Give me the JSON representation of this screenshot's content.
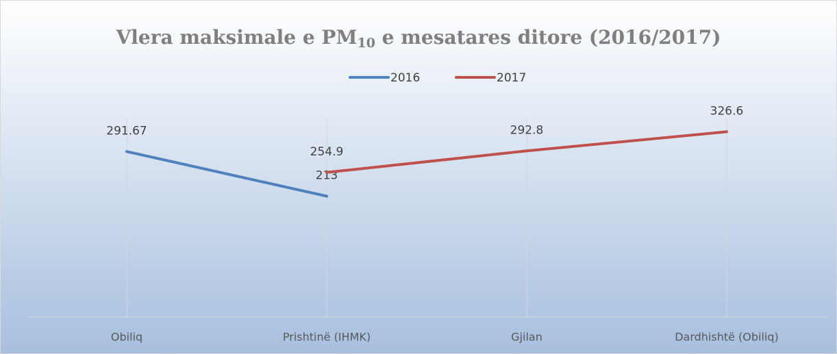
{
  "chart_data": {
    "type": "line",
    "title": [
      "Vlera maksimale e PM",
      "10",
      " e mesatares ditore (2016/2017)"
    ],
    "categories": [
      "Obiliq",
      "Prishtinë (IHMK)",
      "Gjilan",
      "Dardhishtë (Obiliq)"
    ],
    "series": [
      {
        "name": "2016",
        "color": "#4f81bd",
        "values": [
          291.67,
          213,
          null,
          null
        ]
      },
      {
        "name": "2017",
        "color": "#c0504d",
        "values": [
          null,
          254.9,
          292.8,
          326.6
        ]
      }
    ],
    "ylim": [
      0,
      350
    ],
    "legend": "top"
  }
}
